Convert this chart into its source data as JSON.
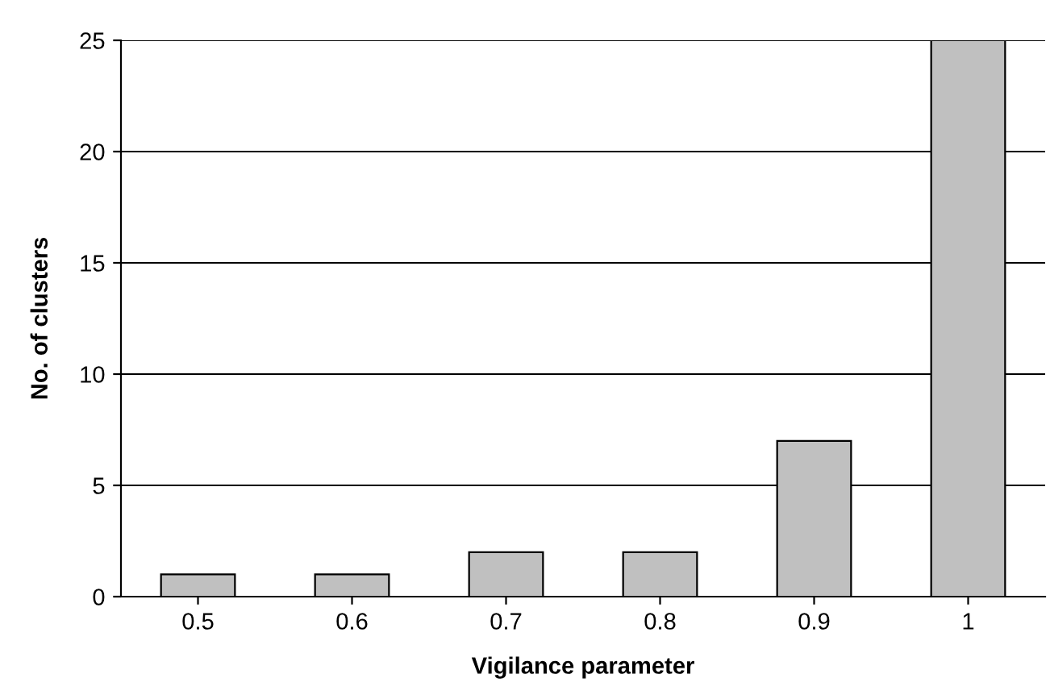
{
  "chart_data": {
    "type": "bar",
    "xlabel": "Vigilance parameter",
    "ylabel": "No. of clusters",
    "categories": [
      "0.5",
      "0.6",
      "0.7",
      "0.8",
      "0.9",
      "1"
    ],
    "values": [
      1,
      1,
      2,
      2,
      7,
      25
    ],
    "color": "#c0c0c0",
    "ylim": [
      0,
      25
    ],
    "yticks": [
      0,
      5,
      10,
      15,
      20,
      25
    ],
    "grid": "y"
  }
}
